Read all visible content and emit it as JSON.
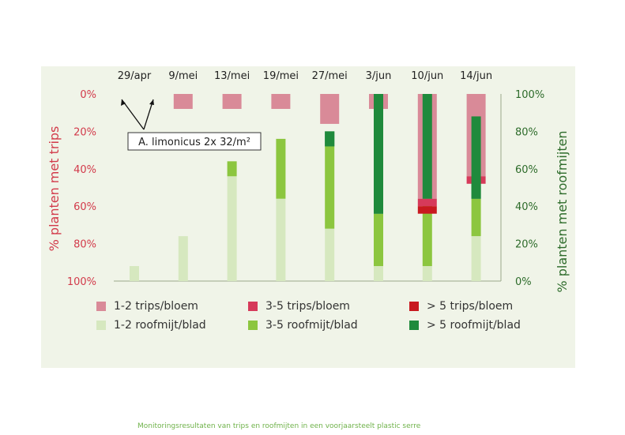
{
  "chart_data": {
    "type": "bar",
    "categories": [
      "29/apr",
      "9/mei",
      "13/mei",
      "19/mei",
      "27/mei",
      "3/jun",
      "10/jun",
      "14/jun"
    ],
    "left_axis": {
      "label": "% planten met trips",
      "ticks": [
        "0%",
        "20%",
        "40%",
        "60%",
        "80%",
        "100%"
      ],
      "range": [
        0,
        100
      ],
      "direction": "downward from top",
      "color": "#d23a4a"
    },
    "right_axis": {
      "label": "% planten met roofmijten",
      "ticks": [
        "0%",
        "20%",
        "40%",
        "60%",
        "80%",
        "100%"
      ],
      "range": [
        0,
        100
      ],
      "direction": "upward from bottom",
      "color": "#2d6b2a"
    },
    "trips_series": [
      {
        "name": "1-2 trips/bloem",
        "color": "#d98a98",
        "values": [
          0,
          8,
          8,
          8,
          16,
          8,
          56,
          44
        ]
      },
      {
        "name": "3-5 trips/bloem",
        "color": "#d63a5a",
        "values": [
          0,
          0,
          0,
          0,
          0,
          0,
          4,
          4
        ]
      },
      {
        "name": "> 5 trips/bloem",
        "color": "#c8191f",
        "values": [
          0,
          0,
          0,
          0,
          0,
          0,
          4,
          0
        ]
      }
    ],
    "roofmijt_series": [
      {
        "name": "1-2 roofmijt/blad",
        "color": "#d6e8bf",
        "values": [
          8,
          24,
          56,
          44,
          28,
          8,
          8,
          24
        ]
      },
      {
        "name": "3-5 roofmijt/blad",
        "color": "#8cc63f",
        "values": [
          0,
          0,
          8,
          32,
          44,
          28,
          36,
          20
        ]
      },
      {
        "name": "> 5 roofmijt/blad",
        "color": "#1f8a3c",
        "values": [
          0,
          0,
          0,
          0,
          8,
          64,
          56,
          44
        ]
      }
    ],
    "annotation": "A. limonicus 2x 32/m²",
    "legend_position": "bottom",
    "grid": false
  },
  "caption": "Monitoringsresultaten van trips en roofmijten in een voorjaarsteelt plastic serre"
}
